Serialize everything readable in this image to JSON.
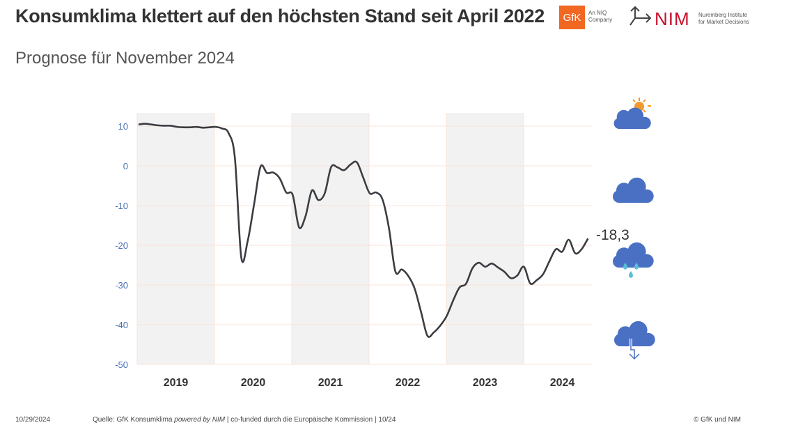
{
  "header": {
    "title": "Konsumklima klettert auf den höchsten Stand seit April 2022",
    "subtitle": "Prognose für November 2024"
  },
  "logos": {
    "gfk": "GfK",
    "gfk_sub1": "An NIQ",
    "gfk_sub2": "Company",
    "nim": "NIM",
    "nim_sub1": "Nuremberg Institute",
    "nim_sub2": "for Market Decisions"
  },
  "footer": {
    "date": "10/29/2024",
    "source_pre": "Quelle: GfK Konsumklima ",
    "source_italic": "powered by NIM",
    "source_post": " | co-funded durch die Europäische Kommission | 10/24",
    "copyright": "© GfK und NIM"
  },
  "icons": [
    "sun-cloud-icon",
    "cloud-icon",
    "rain-cloud-icon",
    "downpour-cloud-icon"
  ],
  "chart_data": {
    "type": "line",
    "title": "Prognose für November 2024",
    "ylim": [
      -50,
      10
    ],
    "yticks": [
      10,
      0,
      -10,
      -20,
      -30,
      -40,
      -50
    ],
    "ytick_labels": [
      "10",
      "0",
      "-10",
      "-20",
      "-30",
      "-40",
      "-50"
    ],
    "xticks": [
      "2019",
      "2020",
      "2021",
      "2022",
      "2023",
      "2024"
    ],
    "shaded_years": [
      "2019",
      "2021",
      "2023"
    ],
    "last_value_label": "-18,3",
    "colors": {
      "line": "#3a3d42",
      "shade": "#f2f2f2",
      "grid": "#fbe3d8",
      "tick": "#4a70b5"
    },
    "x_start": "2019-01",
    "x_end": "2024-11",
    "values": [
      10.4,
      10.6,
      10.4,
      10.2,
      10.1,
      10.1,
      9.8,
      9.7,
      9.7,
      9.8,
      9.6,
      9.7,
      9.8,
      9.4,
      8.3,
      2.0,
      -23.1,
      -18.9,
      -9.6,
      -0.2,
      -1.8,
      -1.7,
      -3.2,
      -6.7,
      -7.3,
      -15.5,
      -12.7,
      -6.2,
      -8.6,
      -6.9,
      -0.3,
      -0.4,
      -1.1,
      0.3,
      0.9,
      -3.0,
      -6.9,
      -6.7,
      -8.5,
      -15.7,
      -26.6,
      -26.1,
      -27.7,
      -30.9,
      -36.8,
      -42.8,
      -41.9,
      -40.2,
      -37.8,
      -33.9,
      -30.6,
      -29.7,
      -25.8,
      -24.4,
      -25.4,
      -24.6,
      -25.6,
      -26.7,
      -28.3,
      -27.6,
      -25.4,
      -29.6,
      -28.8,
      -27.3,
      -24.0,
      -21.0,
      -21.6,
      -18.6,
      -22.0,
      -21.0,
      -18.3
    ]
  }
}
